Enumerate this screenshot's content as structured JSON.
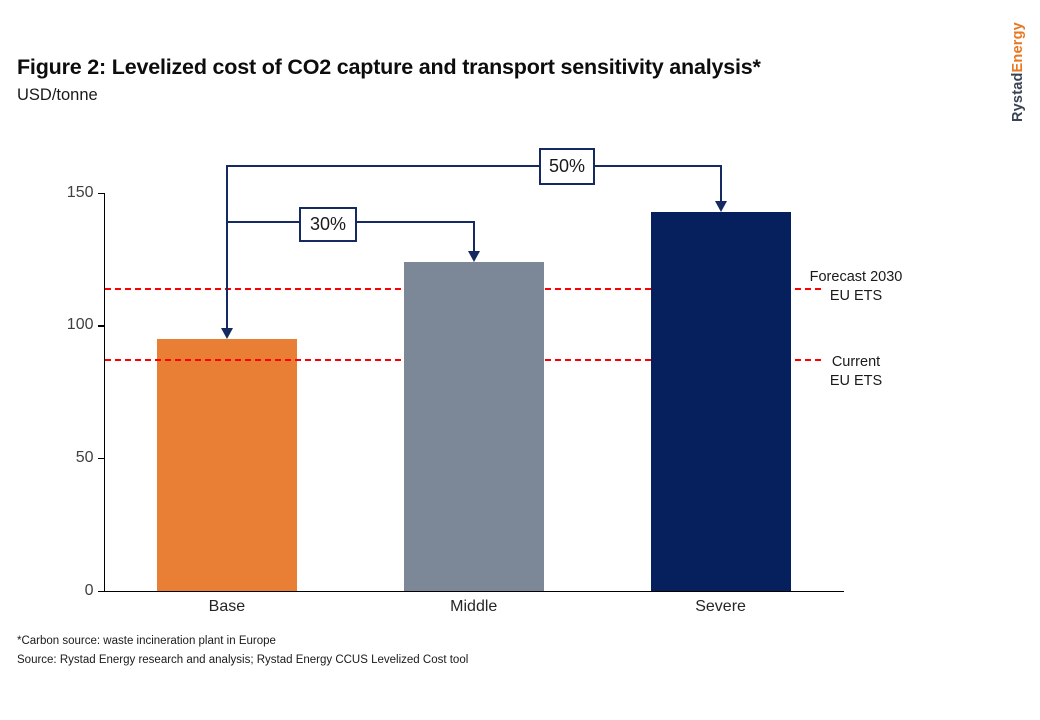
{
  "figure": {
    "title": "Figure 2: Levelized cost of CO2 capture and transport sensitivity analysis*",
    "subtitle": "USD/tonne",
    "footnote1": "*Carbon source: waste incineration plant in Europe",
    "footnote2": "Source: Rystad Energy research and analysis; Rystad Energy CCUS Levelized Cost tool"
  },
  "logo": {
    "part1": "Rystad",
    "part2": "Energy",
    "part1_color": "#3A4454",
    "part2_color": "#E87722"
  },
  "chart_data": {
    "type": "bar",
    "title": "Figure 2: Levelized cost of CO2 capture and transport sensitivity analysis*",
    "ylabel": "USD/tonne",
    "categories": [
      "Base",
      "Middle",
      "Severe"
    ],
    "values": [
      95,
      124,
      143
    ],
    "bar_colors": [
      "#E87F35",
      "#7C8897",
      "#05205C"
    ],
    "ylim": [
      0,
      150
    ],
    "yticks": [
      0,
      50,
      100,
      150
    ],
    "grid": false,
    "annotation_color": "#142A60",
    "annotations": [
      {
        "label": "30%",
        "from_category": "Base",
        "to_category": "Middle"
      },
      {
        "label": "50%",
        "from_category": "Base",
        "to_category": "Severe"
      }
    ],
    "reference_lines": [
      {
        "value": 114,
        "label_line1": "Forecast 2030",
        "label_line2": "EU ETS",
        "color": "#FF0000",
        "style": "dashed"
      },
      {
        "value": 87,
        "label_line1": "Current",
        "label_line2": "EU ETS",
        "color": "#FF0000",
        "style": "dashed"
      }
    ]
  }
}
